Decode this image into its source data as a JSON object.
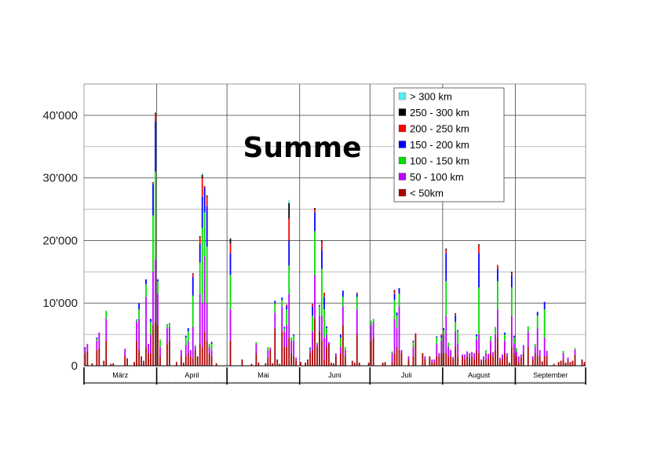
{
  "chart_data": {
    "type": "bar",
    "stacked": true,
    "title": "Summe",
    "xlabel": "",
    "ylabel": "",
    "ylim": [
      0,
      45000
    ],
    "yticks": [
      0,
      10000,
      20000,
      30000,
      40000
    ],
    "ytick_labels": [
      "0",
      "10'000",
      "20'000",
      "30'000",
      "40'000"
    ],
    "grid": true,
    "legend_position": "top-right",
    "months": [
      {
        "label": "März",
        "days": 31
      },
      {
        "label": "April",
        "days": 30
      },
      {
        "label": "Mai",
        "days": 31
      },
      {
        "label": "Juni",
        "days": 30
      },
      {
        "label": "Juli",
        "days": 31
      },
      {
        "label": "August",
        "days": 31
      },
      {
        "label": "September",
        "days": 30
      }
    ],
    "series_order": [
      "< 50km",
      "50 - 100 km",
      "100 - 150 km",
      "150 - 200 km",
      "200 - 250 km",
      "250 - 300 km",
      "> 300 km"
    ],
    "series": [
      {
        "name": "> 300 km",
        "color": "#55eeee"
      },
      {
        "name": "250 - 300 km",
        "color": "#000000"
      },
      {
        "name": "200 - 250 km",
        "color": "#ff0000"
      },
      {
        "name": "150 - 200 km",
        "color": "#0000ff"
      },
      {
        "name": "100 - 150 km",
        "color": "#00dd00"
      },
      {
        "name": "50 - 100 km",
        "color": "#bb00ff"
      },
      {
        "name": "< 50km",
        "color": "#aa0000"
      }
    ],
    "days": [
      {
        "i": 0,
        "v": [
          2000,
          1000
        ]
      },
      {
        "i": 1,
        "v": [
          2300,
          1200
        ]
      },
      {
        "i": 3,
        "v": [
          400
        ]
      },
      {
        "i": 5,
        "v": [
          2500,
          1500,
          300,
          200
        ]
      },
      {
        "i": 6,
        "v": [
          2800,
          2500
        ]
      },
      {
        "i": 8,
        "v": [
          800
        ]
      },
      {
        "i": 9,
        "v": [
          4000,
          3500,
          1300
        ]
      },
      {
        "i": 11,
        "v": [
          300
        ]
      },
      {
        "i": 12,
        "v": [
          400
        ]
      },
      {
        "i": 17,
        "v": [
          1500,
          1200
        ]
      },
      {
        "i": 18,
        "v": [
          1200
        ]
      },
      {
        "i": 21,
        "v": [
          600
        ]
      },
      {
        "i": 22,
        "v": [
          4000,
          3000,
          300,
          100
        ]
      },
      {
        "i": 23,
        "v": [
          2500,
          5000,
          1500,
          1000
        ]
      },
      {
        "i": 24,
        "v": [
          1500
        ]
      },
      {
        "i": 25,
        "v": [
          800
        ]
      },
      {
        "i": 26,
        "v": [
          3000,
          8000,
          2000,
          800
        ]
      },
      {
        "i": 27,
        "v": [
          2000,
          1500
        ]
      },
      {
        "i": 28,
        "v": [
          2000,
          3000,
          2000,
          500
        ]
      },
      {
        "i": 29,
        "v": [
          6500,
          8500,
          9000,
          5000,
          200,
          100
        ]
      },
      {
        "i": 30,
        "v": [
          7000,
          10000,
          14000,
          8000,
          1200,
          200,
          100
        ]
      },
      {
        "i": 31,
        "v": [
          6500,
          5000,
          2000,
          300
        ]
      },
      {
        "i": 32,
        "v": [
          1500,
          1500,
          1200
        ]
      },
      {
        "i": 35,
        "v": [
          3500,
          2500,
          500,
          100
        ]
      },
      {
        "i": 36,
        "v": [
          4000,
          2200,
          500,
          100
        ]
      },
      {
        "i": 39,
        "v": [
          600
        ]
      },
      {
        "i": 41,
        "v": [
          1500,
          1000
        ]
      },
      {
        "i": 42,
        "v": [
          500
        ]
      },
      {
        "i": 43,
        "v": [
          1500,
          1800,
          1200,
          300
        ]
      },
      {
        "i": 44,
        "v": [
          2000,
          2000,
          1500,
          500
        ]
      },
      {
        "i": 45,
        "v": [
          1500,
          1000
        ]
      },
      {
        "i": 46,
        "v": [
          1200,
          5000,
          5000,
          3000,
          500,
          100
        ]
      },
      {
        "i": 47,
        "v": [
          2500,
          500,
          300
        ]
      },
      {
        "i": 48,
        "v": [
          1500
        ]
      },
      {
        "i": 49,
        "v": [
          3500,
          8000,
          5000,
          3000,
          1000,
          200
        ]
      },
      {
        "i": 50,
        "v": [
          3000,
          7000,
          12000,
          5000,
          3000,
          500,
          300
        ]
      },
      {
        "i": 51,
        "v": [
          5500,
          12000,
          7000,
          4000,
          200
        ]
      },
      {
        "i": 52,
        "v": [
          4000,
          6000,
          9000,
          6500,
          1500,
          200
        ]
      },
      {
        "i": 53,
        "v": [
          2000,
          1000,
          500
        ]
      },
      {
        "i": 54,
        "v": [
          1500,
          1000,
          1000,
          300
        ]
      },
      {
        "i": 56,
        "v": [
          400
        ]
      },
      {
        "i": 62,
        "v": [
          4000,
          5000,
          5500,
          3500,
          1500,
          800,
          100
        ]
      },
      {
        "i": 67,
        "v": [
          1000
        ]
      },
      {
        "i": 71,
        "v": [
          300
        ]
      },
      {
        "i": 73,
        "v": [
          2000,
          1500,
          300
        ]
      },
      {
        "i": 74,
        "v": [
          500
        ]
      },
      {
        "i": 77,
        "v": [
          400
        ]
      },
      {
        "i": 78,
        "v": [
          1300,
          1200,
          500
        ]
      },
      {
        "i": 79,
        "v": [
          2500,
          400
        ]
      },
      {
        "i": 80,
        "v": [
          400
        ]
      },
      {
        "i": 81,
        "v": [
          6000,
          2500,
          1500,
          400
        ]
      },
      {
        "i": 82,
        "v": [
          1000
        ]
      },
      {
        "i": 83,
        "v": [
          300
        ]
      },
      {
        "i": 84,
        "v": [
          5500,
          4000,
          1000,
          400
        ]
      },
      {
        "i": 85,
        "v": [
          3000,
          2500,
          500,
          200
        ]
      },
      {
        "i": 86,
        "v": [
          3000,
          3500,
          2500,
          600,
          200
        ]
      },
      {
        "i": 87,
        "v": [
          4500,
          7000,
          4500,
          4000,
          3500,
          2500,
          500
        ]
      },
      {
        "i": 88,
        "v": [
          2000,
          2000,
          500
        ]
      },
      {
        "i": 89,
        "v": [
          1500,
          2500,
          800,
          200
        ]
      },
      {
        "i": 90,
        "v": [
          800,
          500
        ]
      },
      {
        "i": 92,
        "v": [
          600
        ]
      },
      {
        "i": 94,
        "v": [
          500
        ]
      },
      {
        "i": 95,
        "v": [
          1000
        ]
      },
      {
        "i": 96,
        "v": [
          2000,
          500,
          200,
          200
        ]
      },
      {
        "i": 97,
        "v": [
          2500,
          3000,
          2500,
          1500,
          400
        ]
      },
      {
        "i": 98,
        "v": [
          7500,
          7000,
          7000,
          3000,
          500,
          200
        ]
      },
      {
        "i": 99,
        "v": [
          3000,
          500,
          200
        ]
      },
      {
        "i": 100,
        "v": [
          5500,
          2500,
          1500,
          200
        ]
      },
      {
        "i": 101,
        "v": [
          4000,
          4000,
          7500,
          3000,
          1300,
          200
        ]
      },
      {
        "i": 102,
        "v": [
          1000,
          3500,
          4500,
          2000,
          700
        ]
      },
      {
        "i": 103,
        "v": [
          3000,
          2000,
          1000,
          300
        ]
      },
      {
        "i": 104,
        "v": [
          3500,
          300
        ]
      },
      {
        "i": 105,
        "v": [
          500
        ]
      },
      {
        "i": 106,
        "v": [
          400
        ]
      },
      {
        "i": 107,
        "v": [
          1500,
          500
        ]
      },
      {
        "i": 109,
        "v": [
          2000,
          1000,
          1500,
          500
        ]
      },
      {
        "i": 110,
        "v": [
          6500,
          3000,
          1500,
          1000
        ]
      },
      {
        "i": 111,
        "v": [
          1500,
          1000,
          500
        ]
      },
      {
        "i": 114,
        "v": [
          800
        ]
      },
      {
        "i": 115,
        "v": [
          500
        ]
      },
      {
        "i": 116,
        "v": [
          5000,
          4000,
          2000,
          500,
          200
        ]
      },
      {
        "i": 117,
        "v": [
          500
        ]
      },
      {
        "i": 121,
        "v": [
          500
        ]
      },
      {
        "i": 122,
        "v": [
          4000,
          2500,
          700
        ]
      },
      {
        "i": 123,
        "v": [
          4500,
          2500,
          500
        ]
      },
      {
        "i": 127,
        "v": [
          500
        ]
      },
      {
        "i": 128,
        "v": [
          600
        ]
      },
      {
        "i": 131,
        "v": [
          500,
          1500,
          300
        ]
      },
      {
        "i": 132,
        "v": [
          2000,
          5500,
          3000,
          1000,
          400,
          200
        ]
      },
      {
        "i": 133,
        "v": [
          3000,
          3000,
          2000,
          500
        ]
      },
      {
        "i": 134,
        "v": [
          2500,
          7000,
          2000,
          900
        ]
      },
      {
        "i": 135,
        "v": [
          2000,
          500
        ]
      },
      {
        "i": 138,
        "v": [
          1000,
          500
        ]
      },
      {
        "i": 140,
        "v": [
          1500,
          1500,
          800,
          200
        ]
      },
      {
        "i": 141,
        "v": [
          5000,
          200
        ]
      },
      {
        "i": 144,
        "v": [
          2000
        ]
      },
      {
        "i": 145,
        "v": [
          1000,
          500
        ]
      },
      {
        "i": 147,
        "v": [
          1500
        ]
      },
      {
        "i": 148,
        "v": [
          500,
          500
        ]
      },
      {
        "i": 149,
        "v": [
          500,
          500
        ]
      },
      {
        "i": 150,
        "v": [
          1500,
          2000,
          1000,
          200
        ]
      },
      {
        "i": 151,
        "v": [
          1500,
          500
        ]
      },
      {
        "i": 152,
        "v": [
          2000,
          2000,
          500,
          300,
          200
        ]
      },
      {
        "i": 153,
        "v": [
          2000,
          3000,
          700,
          300
        ]
      },
      {
        "i": 154,
        "v": [
          2000,
          6000,
          5500,
          4500,
          500,
          200
        ]
      },
      {
        "i": 155,
        "v": [
          1500,
          1500,
          700
        ]
      },
      {
        "i": 156,
        "v": [
          1500,
          1000
        ]
      },
      {
        "i": 157,
        "v": [
          1000,
          400
        ]
      },
      {
        "i": 158,
        "v": [
          3000,
          2500,
          1500,
          1000,
          300,
          100
        ]
      },
      {
        "i": 159,
        "v": [
          1500,
          2000,
          2000,
          200
        ]
      },
      {
        "i": 161,
        "v": [
          1500,
          300
        ]
      },
      {
        "i": 162,
        "v": [
          1000,
          800
        ]
      },
      {
        "i": 163,
        "v": [
          1500,
          800
        ]
      },
      {
        "i": 164,
        "v": [
          1200,
          800
        ]
      },
      {
        "i": 165,
        "v": [
          1500,
          700
        ]
      },
      {
        "i": 166,
        "v": [
          1000,
          1000
        ]
      },
      {
        "i": 167,
        "v": [
          2500,
          1700,
          500,
          300
        ]
      },
      {
        "i": 168,
        "v": [
          2000,
          3000,
          7500,
          5500,
          1200,
          200
        ]
      },
      {
        "i": 169,
        "v": [
          700,
          300
        ]
      },
      {
        "i": 170,
        "v": [
          1000,
          500
        ]
      },
      {
        "i": 171,
        "v": [
          1000,
          1000,
          500
        ]
      },
      {
        "i": 172,
        "v": [
          1200,
          700
        ]
      },
      {
        "i": 173,
        "v": [
          2000,
          2000,
          700
        ]
      },
      {
        "i": 174,
        "v": [
          1500,
          700
        ]
      },
      {
        "i": 175,
        "v": [
          2500,
          2500,
          1200
        ]
      },
      {
        "i": 176,
        "v": [
          4500,
          4500,
          4500,
          2000,
          600
        ]
      },
      {
        "i": 177,
        "v": [
          800,
          500
        ]
      },
      {
        "i": 178,
        "v": [
          1200,
          600
        ]
      },
      {
        "i": 179,
        "v": [
          2000,
          2000,
          1000,
          300
        ]
      },
      {
        "i": 180,
        "v": [
          1500,
          500
        ]
      },
      {
        "i": 181,
        "v": [
          500
        ]
      },
      {
        "i": 182,
        "v": [
          3000,
          5000,
          4500,
          2000,
          300,
          200
        ]
      },
      {
        "i": 183,
        "v": [
          2000,
          1500,
          1000,
          300
        ]
      },
      {
        "i": 184,
        "v": [
          1500,
          800,
          500
        ]
      },
      {
        "i": 185,
        "v": [
          500,
          1000
        ]
      },
      {
        "i": 186,
        "v": [
          1300,
          500
        ]
      },
      {
        "i": 187,
        "v": [
          2000,
          1300
        ]
      },
      {
        "i": 189,
        "v": [
          3000,
          2500,
          800
        ]
      },
      {
        "i": 191,
        "v": [
          1000,
          500
        ]
      },
      {
        "i": 192,
        "v": [
          2000,
          1000,
          500
        ]
      },
      {
        "i": 193,
        "v": [
          1500,
          4500,
          2000,
          600
        ]
      },
      {
        "i": 194,
        "v": [
          1500,
          1000
        ]
      },
      {
        "i": 195,
        "v": [
          700
        ]
      },
      {
        "i": 196,
        "v": [
          1500,
          3000,
          4500,
          1200
        ]
      },
      {
        "i": 197,
        "v": [
          1500,
          900
        ]
      },
      {
        "i": 200,
        "v": [
          300
        ]
      },
      {
        "i": 202,
        "v": [
          600
        ]
      },
      {
        "i": 203,
        "v": [
          800
        ]
      },
      {
        "i": 204,
        "v": [
          1000,
          1000,
          400
        ]
      },
      {
        "i": 205,
        "v": [
          500
        ]
      },
      {
        "i": 206,
        "v": [
          800,
          500
        ]
      },
      {
        "i": 207,
        "v": [
          600
        ]
      },
      {
        "i": 208,
        "v": [
          800
        ]
      },
      {
        "i": 209,
        "v": [
          1800,
          800,
          200
        ]
      },
      {
        "i": 212,
        "v": [
          1000
        ]
      },
      {
        "i": 213,
        "v": [
          600
        ]
      }
    ]
  }
}
